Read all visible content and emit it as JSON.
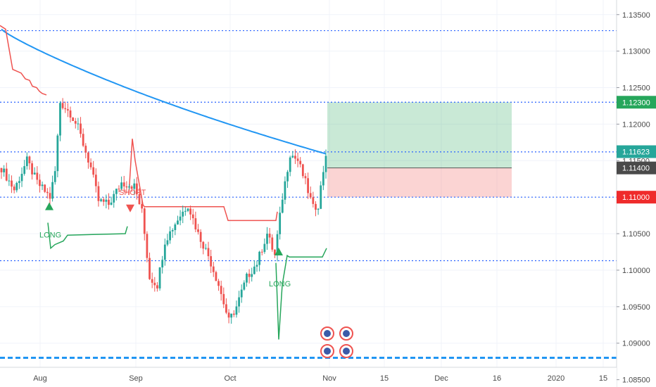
{
  "chart_data": {
    "type": "candlestick",
    "instrument_axis": "price",
    "ylim": [
      1.084,
      1.137
    ],
    "y_ticks": [
      "1.13500",
      "1.13000",
      "1.12500",
      "1.12000",
      "1.11500",
      "1.11000",
      "1.10500",
      "1.10000",
      "1.09500",
      "1.09000",
      "1.08500"
    ],
    "x_ticks": [
      "Aug",
      "Sep",
      "Oct",
      "Nov",
      "15",
      "Dec",
      "16",
      "2020",
      "15"
    ],
    "levels": [
      {
        "price": 1.1328,
        "color": "#2962ff",
        "style": "dotted"
      },
      {
        "price": 1.123,
        "color": "#2962ff",
        "style": "dotted"
      },
      {
        "price": 1.1162,
        "color": "#2962ff",
        "style": "dotted"
      },
      {
        "price": 1.11,
        "color": "#2962ff",
        "style": "dotted"
      },
      {
        "price": 1.1013,
        "color": "#2962ff",
        "style": "dotted"
      },
      {
        "price": 1.088,
        "color": "#2196f3",
        "style": "dashed-thick"
      }
    ],
    "price_labels": [
      {
        "text": "1.12300",
        "price": 1.123,
        "bg": "#26a65b"
      },
      {
        "text": "1.11623",
        "price": 1.11623,
        "bg": "#26a69a"
      },
      {
        "text": "1.11400",
        "price": 1.114,
        "bg": "#4a4a4a"
      },
      {
        "text": "1.11000",
        "price": 1.11,
        "bg": "#ef2b2b"
      }
    ],
    "position": {
      "entry": 1.114,
      "target": 1.123,
      "stop": 1.11
    },
    "signals": [
      {
        "text": "LONG",
        "type": "long",
        "color": "#26a65b"
      },
      {
        "text": "SHORT",
        "type": "short",
        "color": "#ef5350"
      },
      {
        "text": "LONG",
        "type": "long",
        "color": "#26a65b"
      }
    ],
    "colors": {
      "up": "#26a69a",
      "down": "#ef5350",
      "ma": "#2196f3",
      "trail_short": "#ef5350",
      "trail_long": "#26a65b"
    }
  }
}
